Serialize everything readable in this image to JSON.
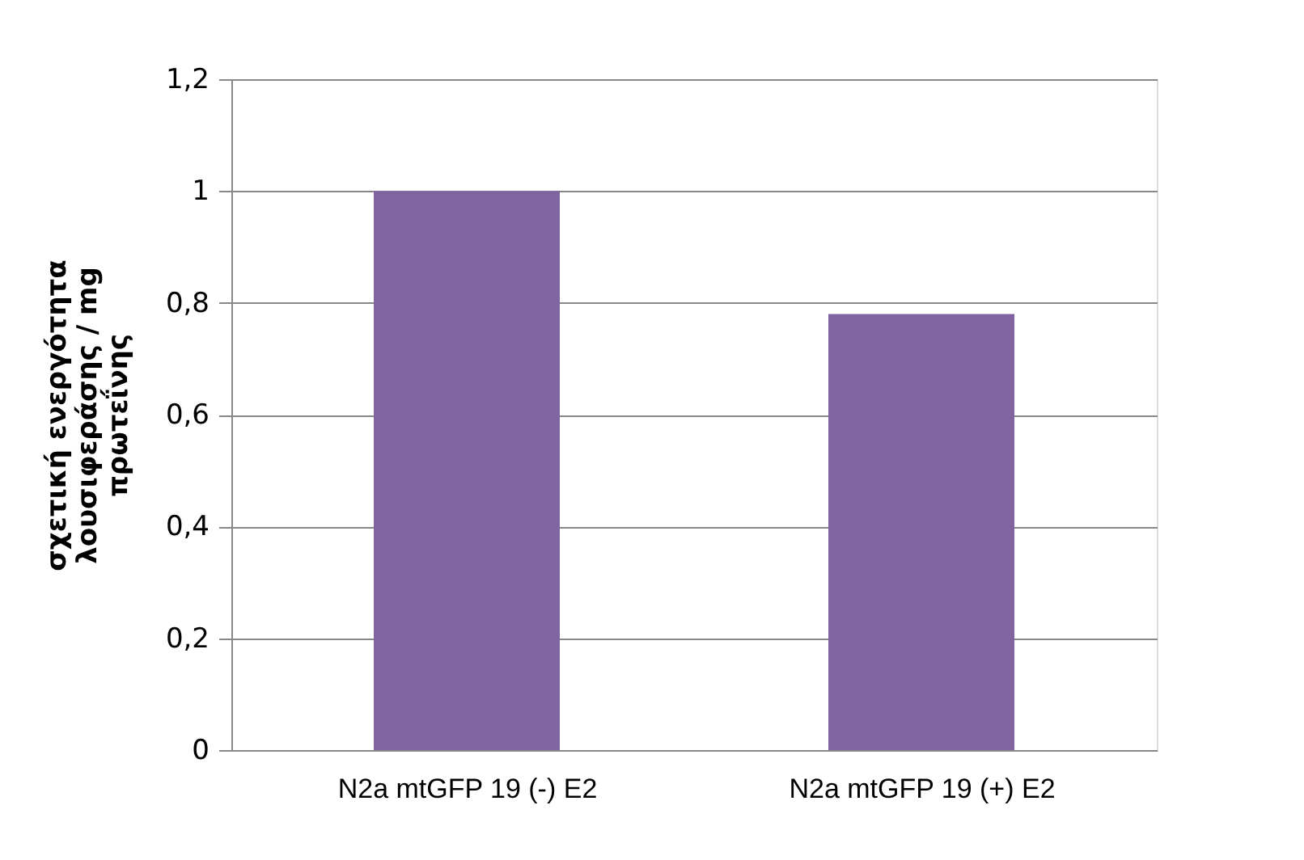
{
  "chart_data": {
    "type": "bar",
    "ylabel": "σχετική ενεργότητα\nλουσιφεράσης / mg\nπρωτεΐνης",
    "categories": [
      "N2a mtGFP 19 (-) E2",
      "N2a mtGFP 19 (+) E2"
    ],
    "values": [
      1.0,
      0.78
    ],
    "color": "#8064a2",
    "ylim": [
      0,
      1.2
    ],
    "yticks": [
      0,
      {
        "value": 0.2,
        "label": "0,2"
      },
      {
        "value": 0.4,
        "label": "0,4"
      },
      {
        "value": 0.6,
        "label": "0,6"
      },
      {
        "value": 0.8,
        "label": "0,8"
      },
      1,
      {
        "value": 1.2,
        "label": "1,2"
      }
    ],
    "grid": "y"
  }
}
